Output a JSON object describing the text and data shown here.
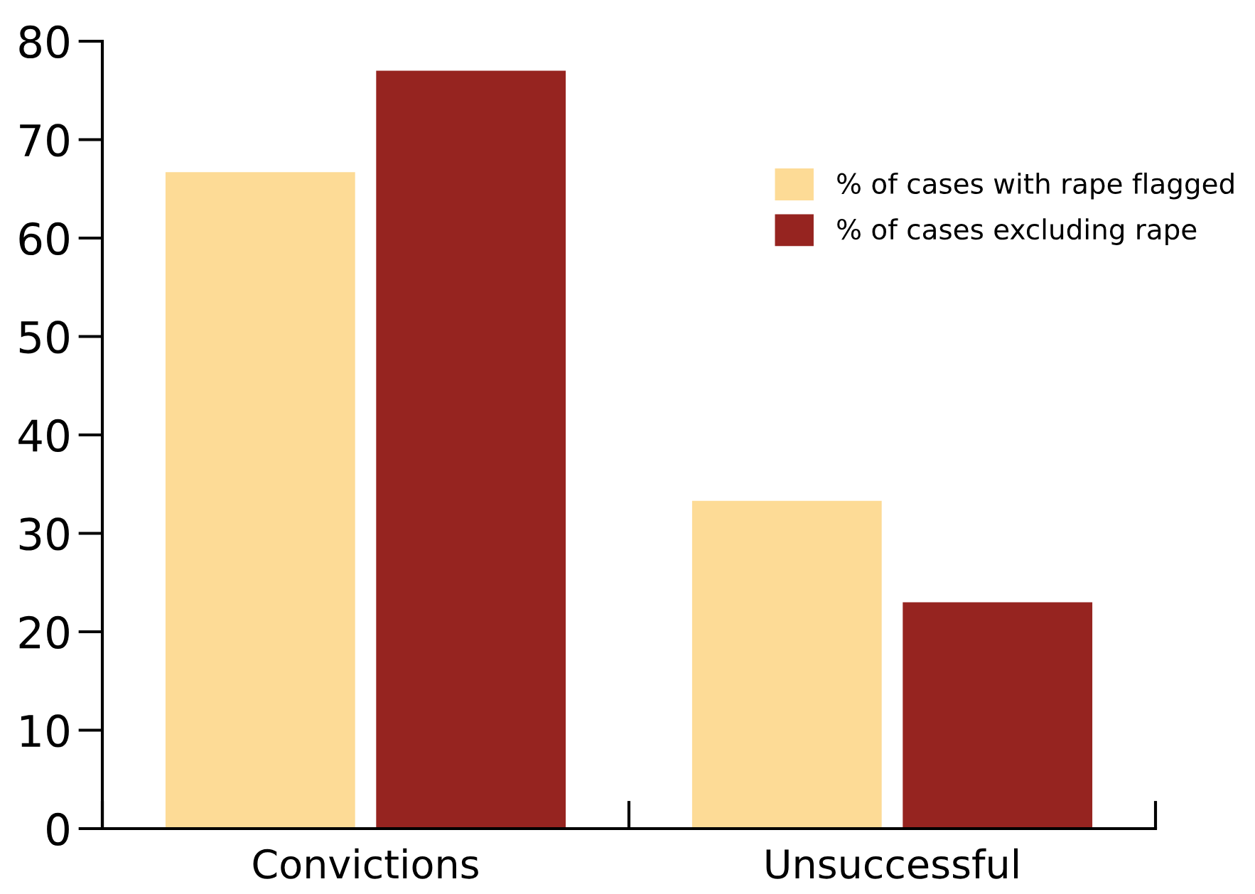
{
  "chart_data": {
    "type": "bar",
    "categories": [
      "Convictions",
      "Unsuccessful"
    ],
    "series": [
      {
        "name": "% of cases with rape flagged",
        "color": "#fddb96",
        "values": [
          66.7,
          33.3
        ]
      },
      {
        "name": "% of cases excluding rape",
        "color": "#962420",
        "values": [
          77,
          23
        ]
      }
    ],
    "ylim": [
      0,
      80
    ],
    "yticks": [
      0,
      10,
      20,
      30,
      40,
      50,
      60,
      70,
      80
    ],
    "grid": false,
    "legend": "top right"
  }
}
